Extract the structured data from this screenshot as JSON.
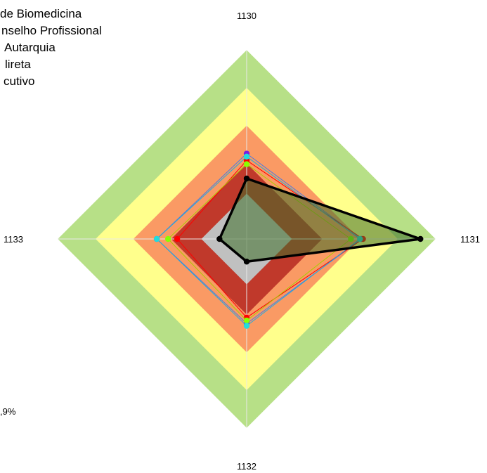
{
  "chart_data": {
    "type": "radar",
    "title": "",
    "axes": [
      "1130",
      "1131",
      "1132",
      "1133"
    ],
    "bands": [
      {
        "to": 0.3,
        "color": "#c0c0c0"
      },
      {
        "to": 0.5,
        "color": "#c0392b"
      },
      {
        "to": 0.75,
        "color": "#fa9a64"
      },
      {
        "to": 1.0,
        "color": "#ffff8c"
      },
      {
        "to": 1.25,
        "color": "#b7e087"
      }
    ],
    "series": [
      {
        "values": [
          0.565,
          0.76,
          0.56,
          0.595
        ],
        "color": "#7a1fe0",
        "line": "#4a7be0",
        "width": 1
      },
      {
        "values": [
          0.52,
          0.77,
          0.52,
          0.46
        ],
        "color": "#ff0000",
        "line": "#ff0000",
        "width": 1
      },
      {
        "values": [
          0.495,
          0.69,
          0.54,
          0.52
        ],
        "color": "#88ff00",
        "line": "#aacc00",
        "width": 1
      },
      {
        "values": [
          0.545,
          0.75,
          0.575,
          0.595
        ],
        "color": "#22dddd",
        "line": "#22aadd",
        "width": 1
      },
      {
        "values": [
          0.4,
          1.15,
          0.15,
          0.18
        ],
        "color": "#000000",
        "line": "#000000",
        "width": 3.5,
        "fill": "rgba(60,110,40,0.55)"
      }
    ]
  },
  "legend": {
    "items": [
      "de Biomedicina",
      "nselho Profissional",
      "Autarquia",
      "lireta",
      "cutivo"
    ]
  },
  "note": {
    "lines": [
      "",
      ",9%"
    ]
  }
}
